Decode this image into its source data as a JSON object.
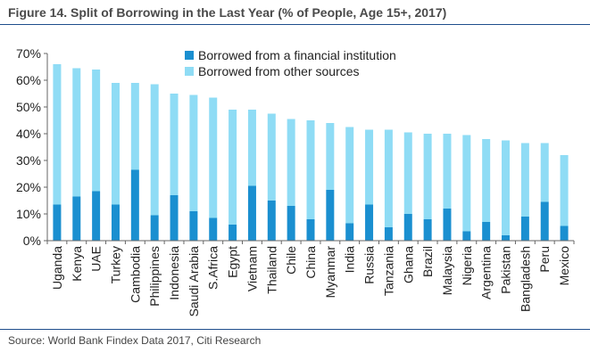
{
  "title": "Figure 14. Split of Borrowing in the Last Year (% of People, Age 15+, 2017)",
  "source": "Source: World Bank Findex Data 2017, Citi Research",
  "colors": {
    "financial": "#1a8fd0",
    "other": "#8fdcf5",
    "rule": "#1f4e8c"
  },
  "chart_data": {
    "type": "bar",
    "stacked": true,
    "categories": [
      "Uganda",
      "Kenya",
      "UAE",
      "Turkey",
      "Cambodia",
      "Philippines",
      "Indonesia",
      "Saudi Arabia",
      "S.Africa",
      "Egypt",
      "Vietnam",
      "Thailand",
      "Chile",
      "China",
      "Myanmar",
      "India",
      "Russia",
      "Tanzania",
      "Ghana",
      "Brazil",
      "Malaysia",
      "Nigeria",
      "Argentina",
      "Pakistan",
      "Bangladesh",
      "Peru",
      "Mexico"
    ],
    "series": [
      {
        "name": "Borrowed from a financial institution",
        "color": "#1a8fd0",
        "values": [
          13.5,
          16.5,
          18.5,
          13.5,
          26.5,
          9.5,
          17,
          11,
          8.5,
          6,
          20.5,
          15,
          13,
          8,
          19,
          6.5,
          13.5,
          5,
          10,
          8,
          12,
          3.5,
          7,
          2,
          9,
          14.5,
          5.5
        ]
      },
      {
        "name": "Borrowed from other sources",
        "color": "#8fdcf5",
        "values": [
          52.5,
          48,
          45.5,
          45.5,
          32.5,
          49,
          38,
          43.5,
          45,
          43,
          28.5,
          32.5,
          32.5,
          37,
          25,
          36,
          28,
          36.5,
          30.5,
          32,
          28,
          36,
          31,
          35.5,
          27.5,
          22,
          26.5
        ]
      }
    ],
    "ylim": [
      0,
      70
    ],
    "yticks": [
      "0%",
      "10%",
      "20%",
      "30%",
      "40%",
      "50%",
      "60%",
      "70%"
    ],
    "grid": false,
    "legend": "top-center"
  }
}
